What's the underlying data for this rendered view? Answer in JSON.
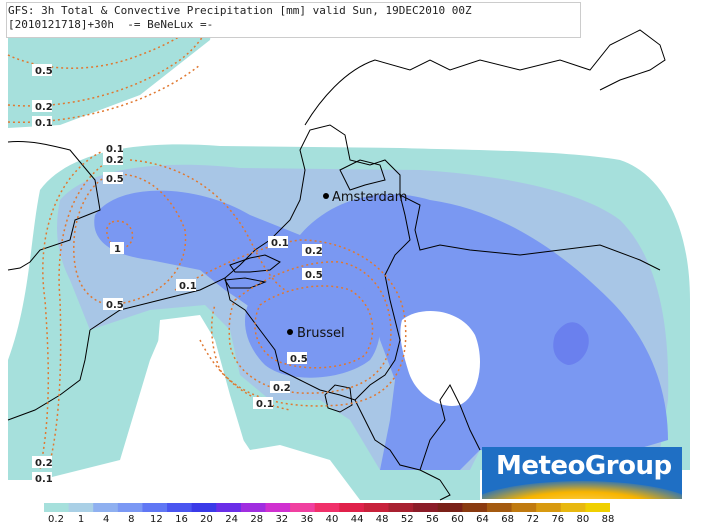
{
  "header": {
    "line1": "GFS: 3h Total & Convective Precipitation [mm] valid Sun, 19DEC2010 00Z",
    "line2": "[2010121718]+30h  -= BeNeLux =-"
  },
  "cities": [
    {
      "name": "Amsterdam"
    },
    {
      "name": "Brussel"
    }
  ],
  "contour_labels": [
    "0.5",
    "0.2",
    "0.1",
    "0.1",
    "0.2",
    "0.5",
    "1",
    "0.5",
    "0.1",
    "0.1",
    "0.2",
    "0.5",
    "0.5",
    "0.2",
    "0.1",
    "0.2",
    "0.1"
  ],
  "logo": {
    "text": "MeteoGroup"
  },
  "legend": {
    "ticks": [
      "0.2",
      "1",
      "4",
      "8",
      "12",
      "16",
      "20",
      "24",
      "28",
      "32",
      "36",
      "40",
      "44",
      "48",
      "52",
      "56",
      "60",
      "64",
      "68",
      "72",
      "76",
      "80",
      "88"
    ],
    "colors": [
      "#a6e0dc",
      "#aad0e6",
      "#8fb0f0",
      "#7b98f4",
      "#6077f4",
      "#4a55f0",
      "#3a3ae8",
      "#6a2ee8",
      "#a02ee0",
      "#d030d0",
      "#f040a0",
      "#f0306a",
      "#e0204a",
      "#c8203a",
      "#a82030",
      "#8c1c28",
      "#7a2018",
      "#8a3a10",
      "#a45a10",
      "#c07a10",
      "#d89a10",
      "#e8b810",
      "#f0d000"
    ]
  },
  "colors": {
    "precip_light": "#a6e0dc",
    "precip_mid": "#a8c6e6",
    "precip_high": "#7a98f2",
    "precip_max": "#6a80ee",
    "contour": "#e07830"
  }
}
